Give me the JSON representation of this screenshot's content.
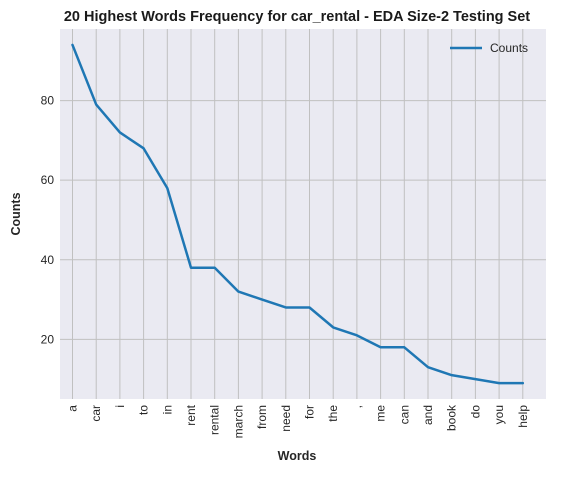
{
  "chart_data": {
    "type": "line",
    "title": "20 Highest Words Frequency for car_rental - EDA Size-2 Testing Set",
    "xlabel": "Words",
    "ylabel": "Counts",
    "categories": [
      "a",
      "car",
      "i",
      "to",
      "in",
      "rent",
      "rental",
      "march",
      "from",
      "need",
      "for",
      "the",
      ",",
      "me",
      "can",
      "and",
      "book",
      "do",
      "you",
      "help"
    ],
    "series": [
      {
        "name": "Counts",
        "values": [
          94,
          79,
          72,
          68,
          58,
          38,
          38,
          32,
          30,
          28,
          28,
          23,
          21,
          18,
          18,
          13,
          11,
          10,
          9,
          9
        ]
      }
    ],
    "ylim": [
      5,
      98
    ],
    "yticks": [
      20,
      40,
      60,
      80
    ],
    "grid": true,
    "legend_position": "top-right",
    "colors": {
      "line": "#1f77b4",
      "plot_background": "#eaeaf2",
      "grid": "#c0c0c0"
    }
  }
}
